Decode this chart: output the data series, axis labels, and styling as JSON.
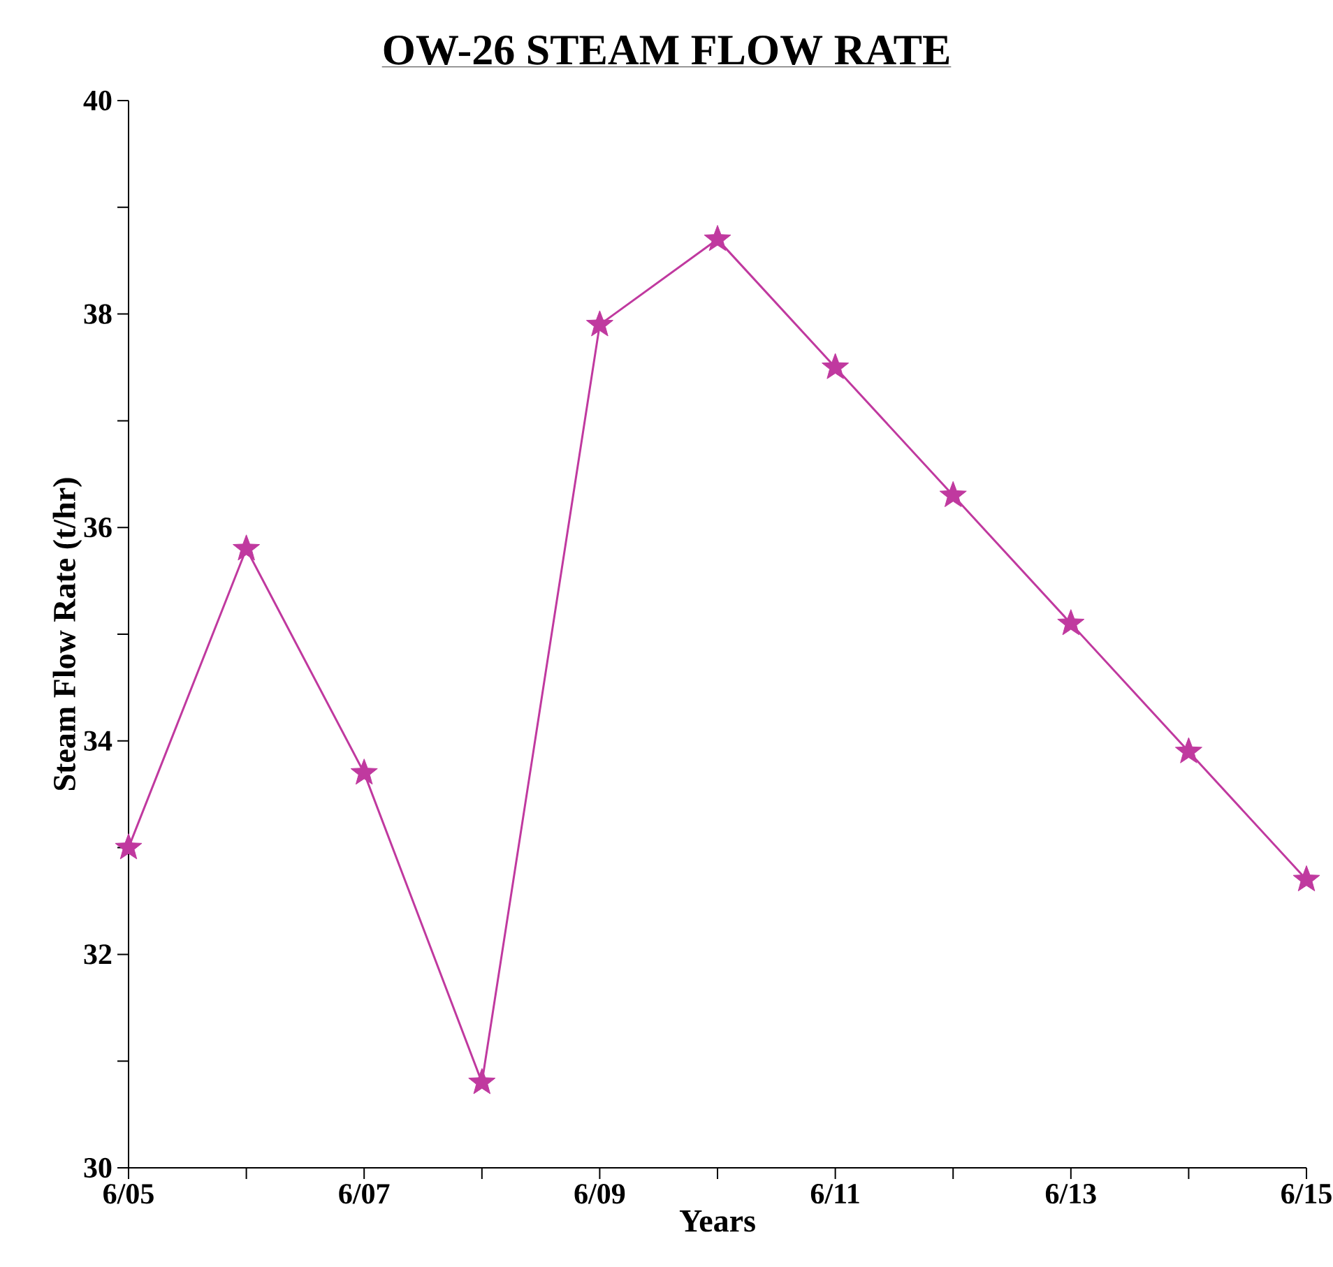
{
  "chart_data": {
    "type": "line",
    "title": "OW-26 STEAM FLOW RATE",
    "xlabel": "Years",
    "ylabel": "Steam Flow Rate (t/hr)",
    "categories": [
      "6/05",
      null,
      "6/07",
      null,
      "6/09",
      null,
      "6/11",
      null,
      "6/13",
      null,
      "6/15"
    ],
    "series": [
      {
        "color": "#c0399f",
        "values": [
          33.0,
          35.8,
          33.7,
          30.8,
          37.9,
          38.7,
          37.5,
          36.3,
          35.1,
          33.9,
          32.7
        ]
      }
    ],
    "ylim": [
      30,
      40
    ],
    "yticks": [
      30,
      {
        "value": 31,
        "label": null
      },
      32,
      {
        "value": 33,
        "label": null
      },
      34,
      {
        "value": 35,
        "label": null
      },
      36,
      {
        "value": 37,
        "label": null
      },
      38,
      {
        "value": 39,
        "label": null
      },
      40
    ],
    "grid": false,
    "marker": "star",
    "line_style": "solid"
  }
}
